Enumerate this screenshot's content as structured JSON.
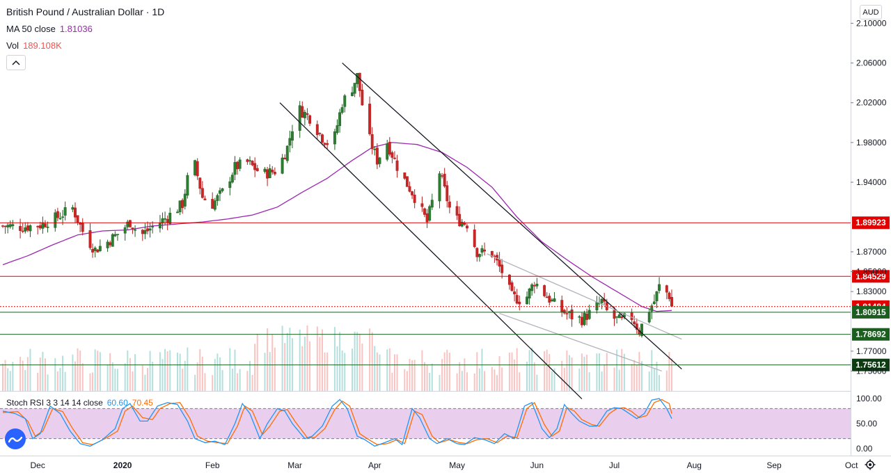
{
  "legend": {
    "title": "British Pound / Australian Dollar · 1D",
    "ma_label": "MA 50 close",
    "ma_value": "1.81036",
    "vol_label": "Vol",
    "vol_value": "189.108K",
    "collapse_icon": "chevron-up-icon"
  },
  "currency": "AUD",
  "stoch": {
    "label": "Stoch RSI 3 3 14 14 close",
    "k_value": "60.60",
    "d_value": "70.45"
  },
  "colors": {
    "up": "#26a69a",
    "down": "#ef5350",
    "candle_up": "#1b5e20",
    "candle_down": "#b71c1c",
    "ma": "#9c27b0",
    "hline_red": "#e00000",
    "hline_green": "#1b5e20",
    "stoch_k": "#2196f3",
    "stoch_d": "#ff6d00",
    "stoch_band": "#e1bee7"
  },
  "chart_data": {
    "type": "candlestick",
    "title": "British Pound / Australian Dollar · 1D",
    "y_range": [
      1.73,
      2.115
    ],
    "price_ticks": [
      "2.10000",
      "2.06000",
      "2.02000",
      "1.98000",
      "1.94000",
      "1.87000",
      "1.85000",
      "1.83000",
      "1.77000",
      "1.75000"
    ],
    "price_tick_values": [
      2.1,
      2.06,
      2.02,
      1.98,
      1.94,
      1.87,
      1.85,
      1.83,
      1.77,
      1.75
    ],
    "x_ticks": [
      "Dec",
      "2020",
      "Feb",
      "Mar",
      "Apr",
      "May",
      "Jun",
      "Jul",
      "Aug",
      "Sep",
      "Oct"
    ],
    "x_tick_days": [
      14,
      48,
      84,
      117,
      149,
      182,
      214,
      245,
      277,
      309,
      340
    ],
    "horizontal_levels": [
      {
        "value": 1.89923,
        "label": "1.89923",
        "color": "#e00000"
      },
      {
        "value": 1.84529,
        "label": "1.84529",
        "color": "#e00000"
      },
      {
        "value": 1.81484,
        "label": "1.81484",
        "color": "#e00000",
        "style": "dotted",
        "current": true
      },
      {
        "value": 1.80915,
        "label": "1.80915",
        "color": "#1b5e20"
      },
      {
        "value": 1.78692,
        "label": "1.78692",
        "color": "#1b5e20"
      },
      {
        "value": 1.75612,
        "label": "1.75612",
        "color": "#1b5e20",
        "dark": true
      }
    ],
    "close_anchors": [
      [
        0,
        1.896
      ],
      [
        8,
        1.895
      ],
      [
        15,
        1.897
      ],
      [
        22,
        1.905
      ],
      [
        28,
        1.914
      ],
      [
        33,
        1.885
      ],
      [
        37,
        1.872
      ],
      [
        42,
        1.88
      ],
      [
        47,
        1.89
      ],
      [
        51,
        1.9
      ],
      [
        55,
        1.886
      ],
      [
        60,
        1.895
      ],
      [
        66,
        1.905
      ],
      [
        72,
        1.918
      ],
      [
        76,
        1.968
      ],
      [
        80,
        1.925
      ],
      [
        84,
        1.918
      ],
      [
        88,
        1.93
      ],
      [
        93,
        1.955
      ],
      [
        98,
        1.96
      ],
      [
        104,
        1.948
      ],
      [
        110,
        1.952
      ],
      [
        114,
        1.975
      ],
      [
        118,
        2.015
      ],
      [
        123,
        2.005
      ],
      [
        128,
        1.985
      ],
      [
        132,
        1.975
      ],
      [
        136,
        2.02
      ],
      [
        140,
        2.035
      ],
      [
        142,
        2.047
      ],
      [
        146,
        1.99
      ],
      [
        150,
        1.962
      ],
      [
        154,
        1.98
      ],
      [
        159,
        1.95
      ],
      [
        164,
        1.93
      ],
      [
        170,
        1.9
      ],
      [
        175,
        1.95
      ],
      [
        180,
        1.905
      ],
      [
        186,
        1.898
      ],
      [
        190,
        1.87
      ],
      [
        196,
        1.868
      ],
      [
        200,
        1.85
      ],
      [
        204,
        1.825
      ],
      [
        209,
        1.82
      ],
      [
        213,
        1.84
      ],
      [
        218,
        1.825
      ],
      [
        223,
        1.812
      ],
      [
        228,
        1.805
      ],
      [
        232,
        1.802
      ],
      [
        236,
        1.81
      ],
      [
        240,
        1.82
      ],
      [
        243,
        1.805
      ],
      [
        248,
        1.8
      ],
      [
        251,
        1.808
      ],
      [
        253,
        1.8
      ],
      [
        255,
        1.79
      ],
      [
        258,
        1.808
      ],
      [
        261,
        1.82
      ],
      [
        263,
        1.835
      ],
      [
        265,
        1.832
      ],
      [
        267,
        1.826
      ],
      [
        268,
        1.815
      ]
    ],
    "volume_range": [
      0,
      1
    ],
    "ma50_anchors": [
      [
        0,
        1.857
      ],
      [
        10,
        1.866
      ],
      [
        20,
        1.877
      ],
      [
        30,
        1.887
      ],
      [
        40,
        1.891
      ],
      [
        50,
        1.892
      ],
      [
        60,
        1.896
      ],
      [
        70,
        1.898
      ],
      [
        80,
        1.9
      ],
      [
        90,
        1.903
      ],
      [
        100,
        1.907
      ],
      [
        110,
        1.915
      ],
      [
        120,
        1.93
      ],
      [
        130,
        1.944
      ],
      [
        140,
        1.962
      ],
      [
        148,
        1.975
      ],
      [
        156,
        1.98
      ],
      [
        166,
        1.978
      ],
      [
        176,
        1.97
      ],
      [
        186,
        1.955
      ],
      [
        196,
        1.935
      ],
      [
        206,
        1.905
      ],
      [
        216,
        1.88
      ],
      [
        226,
        1.862
      ],
      [
        236,
        1.845
      ],
      [
        246,
        1.83
      ],
      [
        256,
        1.815
      ],
      [
        262,
        1.81
      ],
      [
        268,
        1.811
      ]
    ],
    "stoch_range": [
      0,
      100
    ],
    "stoch_ticks": [
      "100.00",
      "50.00",
      "0.00"
    ],
    "stoch_tick_values": [
      100,
      50,
      0
    ],
    "stoch_band": [
      80,
      20
    ],
    "stoch_k_anchors": [
      [
        0,
        75
      ],
      [
        5,
        70
      ],
      [
        9,
        60
      ],
      [
        12,
        20
      ],
      [
        15,
        30
      ],
      [
        19,
        85
      ],
      [
        23,
        70
      ],
      [
        27,
        35
      ],
      [
        31,
        10
      ],
      [
        35,
        5
      ],
      [
        40,
        18
      ],
      [
        45,
        40
      ],
      [
        48,
        80
      ],
      [
        51,
        90
      ],
      [
        55,
        55
      ],
      [
        58,
        55
      ],
      [
        62,
        85
      ],
      [
        66,
        92
      ],
      [
        70,
        88
      ],
      [
        74,
        55
      ],
      [
        77,
        20
      ],
      [
        81,
        12
      ],
      [
        85,
        15
      ],
      [
        89,
        8
      ],
      [
        93,
        50
      ],
      [
        96,
        90
      ],
      [
        99,
        70
      ],
      [
        103,
        20
      ],
      [
        106,
        50
      ],
      [
        110,
        80
      ],
      [
        113,
        75
      ],
      [
        116,
        50
      ],
      [
        121,
        20
      ],
      [
        124,
        25
      ],
      [
        128,
        45
      ],
      [
        132,
        85
      ],
      [
        135,
        98
      ],
      [
        138,
        80
      ],
      [
        142,
        25
      ],
      [
        145,
        18
      ],
      [
        149,
        5
      ],
      [
        153,
        12
      ],
      [
        157,
        20
      ],
      [
        160,
        8
      ],
      [
        164,
        80
      ],
      [
        167,
        62
      ],
      [
        171,
        20
      ],
      [
        174,
        10
      ],
      [
        178,
        20
      ],
      [
        182,
        10
      ],
      [
        185,
        8
      ],
      [
        189,
        22
      ],
      [
        193,
        18
      ],
      [
        197,
        10
      ],
      [
        201,
        30
      ],
      [
        205,
        20
      ],
      [
        209,
        85
      ],
      [
        212,
        92
      ],
      [
        216,
        40
      ],
      [
        219,
        22
      ],
      [
        222,
        40
      ],
      [
        225,
        88
      ],
      [
        228,
        70
      ],
      [
        231,
        55
      ],
      [
        235,
        45
      ],
      [
        238,
        45
      ],
      [
        242,
        75
      ],
      [
        245,
        82
      ],
      [
        248,
        80
      ],
      [
        251,
        70
      ],
      [
        254,
        60
      ],
      [
        257,
        70
      ],
      [
        260,
        97
      ],
      [
        263,
        100
      ],
      [
        266,
        80
      ],
      [
        268,
        60
      ]
    ],
    "stoch_d_anchors": [
      [
        0,
        72
      ],
      [
        6,
        74
      ],
      [
        10,
        55
      ],
      [
        13,
        25
      ],
      [
        16,
        35
      ],
      [
        20,
        80
      ],
      [
        24,
        74
      ],
      [
        28,
        40
      ],
      [
        32,
        12
      ],
      [
        36,
        8
      ],
      [
        41,
        20
      ],
      [
        46,
        35
      ],
      [
        49,
        75
      ],
      [
        52,
        85
      ],
      [
        56,
        62
      ],
      [
        60,
        58
      ],
      [
        63,
        80
      ],
      [
        67,
        90
      ],
      [
        71,
        92
      ],
      [
        75,
        60
      ],
      [
        78,
        25
      ],
      [
        82,
        15
      ],
      [
        86,
        12
      ],
      [
        90,
        10
      ],
      [
        94,
        45
      ],
      [
        97,
        85
      ],
      [
        100,
        75
      ],
      [
        104,
        28
      ],
      [
        107,
        45
      ],
      [
        111,
        75
      ],
      [
        114,
        78
      ],
      [
        117,
        55
      ],
      [
        122,
        22
      ],
      [
        125,
        22
      ],
      [
        129,
        40
      ],
      [
        133,
        78
      ],
      [
        136,
        95
      ],
      [
        139,
        85
      ],
      [
        143,
        30
      ],
      [
        146,
        20
      ],
      [
        150,
        8
      ],
      [
        154,
        10
      ],
      [
        158,
        18
      ],
      [
        161,
        10
      ],
      [
        165,
        75
      ],
      [
        168,
        68
      ],
      [
        172,
        25
      ],
      [
        175,
        12
      ],
      [
        179,
        18
      ],
      [
        183,
        12
      ],
      [
        186,
        10
      ],
      [
        190,
        18
      ],
      [
        194,
        20
      ],
      [
        198,
        12
      ],
      [
        202,
        25
      ],
      [
        206,
        22
      ],
      [
        210,
        80
      ],
      [
        213,
        92
      ],
      [
        217,
        48
      ],
      [
        220,
        25
      ],
      [
        223,
        35
      ],
      [
        226,
        82
      ],
      [
        229,
        75
      ],
      [
        232,
        58
      ],
      [
        236,
        48
      ],
      [
        239,
        45
      ],
      [
        243,
        70
      ],
      [
        246,
        80
      ],
      [
        249,
        82
      ],
      [
        252,
        74
      ],
      [
        255,
        62
      ],
      [
        258,
        66
      ],
      [
        261,
        92
      ],
      [
        264,
        98
      ],
      [
        267,
        90
      ],
      [
        268,
        70
      ]
    ],
    "trendlines": [
      {
        "from": [
          136,
          2.06
        ],
        "to": [
          272,
          1.752
        ],
        "color": "#131722"
      },
      {
        "from": [
          111,
          2.02
        ],
        "to": [
          232,
          1.722
        ],
        "color": "#131722"
      },
      {
        "from": [
          194,
          1.868
        ],
        "to": [
          272,
          1.782
        ],
        "color": "#b0b3bb"
      },
      {
        "from": [
          199,
          1.808
        ],
        "to": [
          264,
          1.75
        ],
        "color": "#b0b3bb"
      }
    ]
  }
}
